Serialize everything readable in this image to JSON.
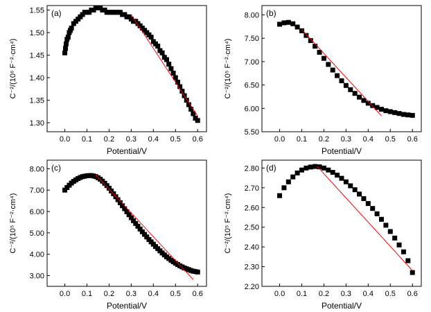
{
  "chart_data": [
    {
      "type": "scatter",
      "panel_label": "(a)",
      "xlabel": "Potential/V",
      "ylabel": "C⁻²/(10⁶ F⁻²·cm⁴)",
      "xlim": [
        -0.08,
        0.64
      ],
      "ylim": [
        1.28,
        1.56
      ],
      "xticks": [
        0.0,
        0.1,
        0.2,
        0.3,
        0.4,
        0.5,
        0.6
      ],
      "xtick_labels": [
        "0.0",
        "0.1",
        "0.2",
        "0.3",
        "0.4",
        "0.5",
        "0.6"
      ],
      "yticks": [
        1.3,
        1.35,
        1.4,
        1.45,
        1.5,
        1.55
      ],
      "ytick_labels": [
        "1.30",
        "1.35",
        "1.40",
        "1.45",
        "1.50",
        "1.55"
      ],
      "series": [
        {
          "marker": "square",
          "color": "#000000",
          "x": [
            0.0,
            0.003,
            0.006,
            0.01,
            0.015,
            0.02,
            0.025,
            0.03,
            0.04,
            0.05,
            0.06,
            0.07,
            0.08,
            0.09,
            0.1,
            0.11,
            0.12,
            0.13,
            0.14,
            0.15,
            0.16,
            0.17,
            0.18,
            0.19,
            0.2,
            0.21,
            0.22,
            0.23,
            0.24,
            0.25,
            0.26,
            0.27,
            0.28,
            0.29,
            0.3,
            0.31,
            0.32,
            0.33,
            0.34,
            0.35,
            0.36,
            0.37,
            0.38,
            0.39,
            0.4,
            0.41,
            0.42,
            0.43,
            0.44,
            0.45,
            0.46,
            0.47,
            0.48,
            0.49,
            0.5,
            0.51,
            0.52,
            0.53,
            0.54,
            0.55,
            0.56,
            0.57,
            0.58,
            0.59,
            0.6
          ],
          "y": [
            1.455,
            1.465,
            1.475,
            1.485,
            1.49,
            1.5,
            1.505,
            1.51,
            1.52,
            1.525,
            1.53,
            1.535,
            1.54,
            1.545,
            1.545,
            1.545,
            1.55,
            1.55,
            1.555,
            1.555,
            1.555,
            1.55,
            1.55,
            1.545,
            1.545,
            1.545,
            1.545,
            1.545,
            1.545,
            1.545,
            1.54,
            1.54,
            1.535,
            1.535,
            1.53,
            1.525,
            1.525,
            1.52,
            1.515,
            1.51,
            1.505,
            1.5,
            1.495,
            1.49,
            1.48,
            1.475,
            1.47,
            1.46,
            1.455,
            1.445,
            1.44,
            1.43,
            1.42,
            1.41,
            1.4,
            1.39,
            1.38,
            1.37,
            1.36,
            1.35,
            1.34,
            1.33,
            1.32,
            1.31,
            1.305
          ]
        }
      ],
      "fit_line": {
        "color": "#ff0000",
        "x": [
          0.3,
          0.6
        ],
        "y": [
          1.54,
          1.315
        ]
      }
    },
    {
      "type": "scatter",
      "panel_label": "(b)",
      "xlabel": "Potential/V",
      "ylabel": "C⁻²/(10⁵ F⁻²·cm⁴)",
      "xlim": [
        -0.08,
        0.64
      ],
      "ylim": [
        5.5,
        8.2
      ],
      "xticks": [
        0.0,
        0.1,
        0.2,
        0.3,
        0.4,
        0.5,
        0.6
      ],
      "xtick_labels": [
        "0.0",
        "0.1",
        "0.2",
        "0.3",
        "0.4",
        "0.5",
        "0.6"
      ],
      "yticks": [
        5.5,
        6.0,
        6.5,
        7.0,
        7.5,
        8.0
      ],
      "ytick_labels": [
        "5.50",
        "6.00",
        "6.50",
        "7.00",
        "7.50",
        "8.00"
      ],
      "series": [
        {
          "marker": "square",
          "color": "#000000",
          "x": [
            0.0,
            0.02,
            0.04,
            0.06,
            0.08,
            0.1,
            0.12,
            0.14,
            0.16,
            0.18,
            0.2,
            0.22,
            0.24,
            0.26,
            0.28,
            0.3,
            0.32,
            0.34,
            0.36,
            0.38,
            0.4,
            0.42,
            0.44,
            0.46,
            0.48,
            0.5,
            0.52,
            0.54,
            0.56,
            0.58,
            0.6
          ],
          "y": [
            7.8,
            7.83,
            7.84,
            7.81,
            7.74,
            7.66,
            7.56,
            7.45,
            7.33,
            7.2,
            7.07,
            6.94,
            6.82,
            6.7,
            6.59,
            6.49,
            6.4,
            6.32,
            6.24,
            6.17,
            6.11,
            6.06,
            6.02,
            5.98,
            5.95,
            5.93,
            5.91,
            5.89,
            5.87,
            5.86,
            5.85
          ]
        }
      ],
      "fit_line": {
        "color": "#ff0000",
        "x": [
          0.1,
          0.46
        ],
        "y": [
          7.69,
          5.84
        ]
      }
    },
    {
      "type": "scatter",
      "panel_label": "(c)",
      "xlabel": "Potential/V",
      "ylabel": "C⁻²/(10⁵ F⁻²·cm⁴)",
      "xlim": [
        -0.08,
        0.64
      ],
      "ylim": [
        2.5,
        8.4
      ],
      "xticks": [
        0.0,
        0.1,
        0.2,
        0.3,
        0.4,
        0.5,
        0.6
      ],
      "xtick_labels": [
        "0.0",
        "0.1",
        "0.2",
        "0.3",
        "0.4",
        "0.5",
        "0.6"
      ],
      "yticks": [
        3.0,
        4.0,
        5.0,
        6.0,
        7.0,
        8.0
      ],
      "ytick_labels": [
        "3.00",
        "4.00",
        "5.00",
        "6.00",
        "7.00",
        "8.00"
      ],
      "series": [
        {
          "marker": "square",
          "color": "#000000",
          "x": [
            0.0,
            0.01,
            0.02,
            0.03,
            0.04,
            0.05,
            0.06,
            0.07,
            0.08,
            0.09,
            0.1,
            0.11,
            0.12,
            0.13,
            0.14,
            0.15,
            0.16,
            0.17,
            0.18,
            0.19,
            0.2,
            0.21,
            0.22,
            0.23,
            0.24,
            0.25,
            0.26,
            0.27,
            0.28,
            0.29,
            0.3,
            0.31,
            0.32,
            0.33,
            0.34,
            0.35,
            0.36,
            0.37,
            0.38,
            0.39,
            0.4,
            0.41,
            0.42,
            0.43,
            0.44,
            0.45,
            0.46,
            0.47,
            0.48,
            0.49,
            0.5,
            0.51,
            0.52,
            0.53,
            0.54,
            0.55,
            0.56,
            0.57,
            0.58,
            0.59,
            0.6
          ],
          "y": [
            7.0,
            7.12,
            7.23,
            7.33,
            7.41,
            7.48,
            7.54,
            7.59,
            7.63,
            7.65,
            7.67,
            7.68,
            7.68,
            7.66,
            7.63,
            7.58,
            7.51,
            7.42,
            7.32,
            7.21,
            7.09,
            6.96,
            6.83,
            6.69,
            6.55,
            6.41,
            6.27,
            6.13,
            5.99,
            5.85,
            5.71,
            5.57,
            5.44,
            5.31,
            5.18,
            5.05,
            4.93,
            4.81,
            4.69,
            4.58,
            4.47,
            4.36,
            4.26,
            4.16,
            4.06,
            3.97,
            3.88,
            3.8,
            3.72,
            3.65,
            3.58,
            3.52,
            3.46,
            3.41,
            3.36,
            3.32,
            3.28,
            3.24,
            3.21,
            3.19,
            3.17
          ]
        }
      ],
      "fit_line": {
        "color": "#ff0000",
        "x": [
          0.14,
          0.58
        ],
        "y": [
          7.71,
          2.82
        ]
      }
    },
    {
      "type": "scatter",
      "panel_label": "(d)",
      "xlabel": "Potential/V",
      "ylabel": "C⁻²/(10⁵ F⁻²·cm⁴)",
      "xlim": [
        -0.08,
        0.64
      ],
      "ylim": [
        2.2,
        2.84
      ],
      "xticks": [
        0.0,
        0.1,
        0.2,
        0.3,
        0.4,
        0.5,
        0.6
      ],
      "xtick_labels": [
        "0.0",
        "0.1",
        "0.2",
        "0.3",
        "0.4",
        "0.5",
        "0.6"
      ],
      "yticks": [
        2.2,
        2.3,
        2.4,
        2.5,
        2.6,
        2.7,
        2.8
      ],
      "ytick_labels": [
        "2.20",
        "2.30",
        "2.40",
        "2.50",
        "2.60",
        "2.70",
        "2.80"
      ],
      "series": [
        {
          "marker": "square",
          "color": "#000000",
          "x": [
            0.0,
            0.02,
            0.04,
            0.06,
            0.08,
            0.1,
            0.12,
            0.14,
            0.16,
            0.18,
            0.2,
            0.22,
            0.24,
            0.26,
            0.28,
            0.3,
            0.32,
            0.34,
            0.36,
            0.38,
            0.4,
            0.42,
            0.44,
            0.46,
            0.48,
            0.5,
            0.52,
            0.54,
            0.56,
            0.58,
            0.6
          ],
          "y": [
            2.66,
            2.7,
            2.73,
            2.755,
            2.775,
            2.79,
            2.8,
            2.805,
            2.808,
            2.806,
            2.8,
            2.79,
            2.778,
            2.764,
            2.748,
            2.73,
            2.71,
            2.69,
            2.668,
            2.645,
            2.62,
            2.595,
            2.568,
            2.54,
            2.51,
            2.478,
            2.445,
            2.41,
            2.375,
            2.33,
            2.27
          ]
        }
      ],
      "fit_line": {
        "color": "#ff0000",
        "x": [
          0.17,
          0.6
        ],
        "y": [
          2.808,
          2.28
        ]
      }
    }
  ]
}
